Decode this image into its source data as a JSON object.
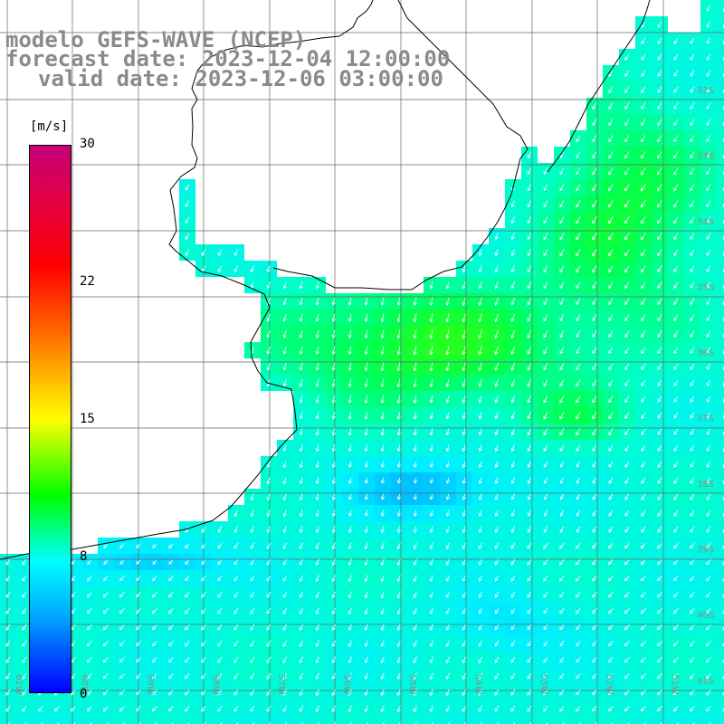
{
  "title": {
    "line1": "modelo GEFS-WAVE (NCEP)",
    "line2": "forecast date: 2023-12-04 12:00:00",
    "line3": "valid date: 2023-12-06 03:00:00"
  },
  "colorbar": {
    "unit": "[m/s]",
    "ticks": [
      "30",
      "22",
      "15",
      "8",
      "0"
    ],
    "colors": [
      "#c8007a",
      "#ff0000",
      "#ff7000",
      "#ffff00",
      "#00ff00",
      "#00ffff",
      "#00a8ff",
      "#0000ff"
    ]
  },
  "map": {
    "lat_labels": [
      "32S",
      "33S",
      "34S",
      "35S",
      "36S",
      "37S",
      "38S",
      "39S",
      "40S",
      "41S"
    ],
    "lon_labels": [
      "61W",
      "60W",
      "59W",
      "58W",
      "57W",
      "56W",
      "55W",
      "54W",
      "53W",
      "52W",
      "51W"
    ],
    "wind_direction": "southwest"
  }
}
